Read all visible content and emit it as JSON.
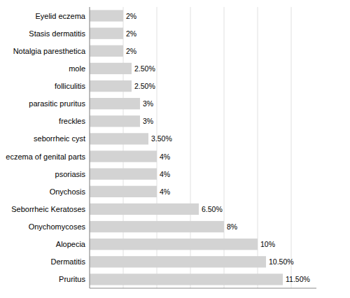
{
  "chart_data": {
    "type": "bar",
    "orientation": "horizontal",
    "categories": [
      "Pruritus",
      "Dermatitis",
      "Alopecia",
      "Onychomycoses",
      "Seborrheic Keratoses",
      "Onychosis",
      "psoriasis",
      "eczema of genital parts",
      "seborrheic cyst",
      "freckles",
      "parasitic pruritus",
      "folliculitis",
      "mole",
      "Notalgia paresthetica",
      "Stasis dermatitis",
      "Eyelid eczema"
    ],
    "values": [
      11.5,
      10.5,
      10.0,
      8.0,
      6.5,
      4.0,
      4.0,
      4.0,
      3.5,
      3.0,
      3.0,
      2.5,
      2.5,
      2.0,
      2.0,
      2.0
    ],
    "value_labels": [
      "11.50%",
      "10.50%",
      "10%",
      "8%",
      "6.50%",
      "4%",
      "4%",
      "4%",
      "3.50%",
      "3%",
      "3%",
      "2.50%",
      "2.50%",
      "2%",
      "2%",
      "2%"
    ],
    "data_labels": true,
    "color": "#d3d3d3",
    "xlim": [
      0,
      13.5
    ],
    "xticks": [
      0,
      2,
      4,
      6,
      8,
      10,
      12
    ],
    "tick_labels": "y",
    "grid": true
  }
}
